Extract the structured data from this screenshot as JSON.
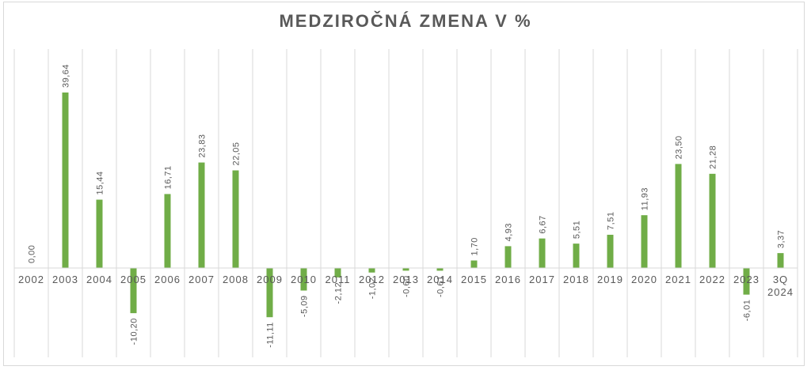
{
  "chart_data": {
    "type": "bar",
    "title": "MEDZIROČNÁ ZMENA V %",
    "xlabel": "",
    "ylabel": "",
    "ylim": [
      -17,
      50
    ],
    "grid": "vertical",
    "legend": "none",
    "bar_color": "#70ad47",
    "categories": [
      "2002",
      "2003",
      "2004",
      "2005",
      "2006",
      "2007",
      "2008",
      "2009",
      "2010",
      "2011",
      "2012",
      "2013",
      "2014",
      "2015",
      "2016",
      "2017",
      "2018",
      "2019",
      "2020",
      "2021",
      "2022",
      "2023",
      "3Q 2024"
    ],
    "values": [
      0.0,
      39.64,
      15.44,
      -10.2,
      16.71,
      23.83,
      22.05,
      -11.11,
      -5.09,
      -2.12,
      -1.02,
      -0.6,
      -0.61,
      1.7,
      4.93,
      6.67,
      5.51,
      7.51,
      11.93,
      23.5,
      21.28,
      -6.01,
      3.37
    ],
    "data_labels": [
      "0,00",
      "39,64",
      "15,44",
      "-10,20",
      "16,71",
      "23,83",
      "22,05",
      "-11,11",
      "-5,09",
      "-2,12",
      "-1,02",
      "-0,60",
      "-0,61",
      "1,70",
      "4,93",
      "6,67",
      "5,51",
      "7,51",
      "11,93",
      "23,50",
      "21,28",
      "-6,01",
      "3,37"
    ]
  }
}
